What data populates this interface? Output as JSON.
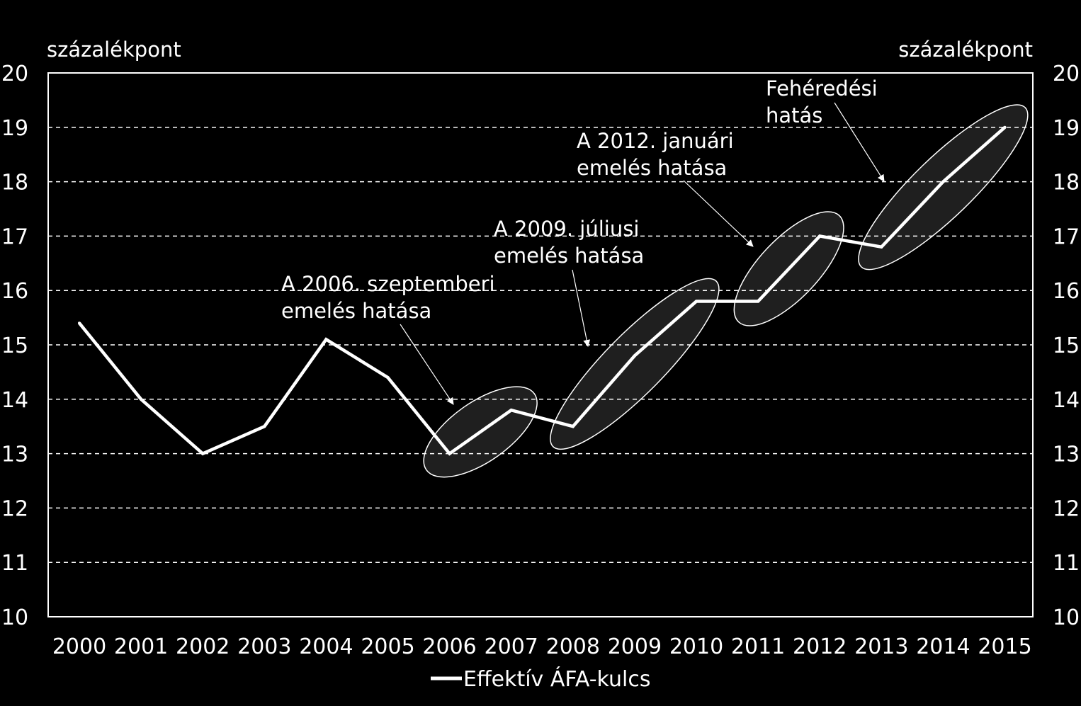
{
  "chart_data": {
    "type": "line",
    "left_unit": "százalékpont",
    "right_unit": "százalékpont",
    "ylim": [
      10,
      20
    ],
    "y_ticks": [
      10,
      11,
      12,
      13,
      14,
      15,
      16,
      17,
      18,
      19,
      20
    ],
    "grid": true,
    "legend_position": "bottom",
    "categories": [
      "2000",
      "2001",
      "2002",
      "2003",
      "2004",
      "2005",
      "2006",
      "2007",
      "2008",
      "2009",
      "2010",
      "2011",
      "2012",
      "2013",
      "2014",
      "2015"
    ],
    "series": [
      {
        "name": "Effektív ÁFA-kulcs",
        "color": "#ffffff",
        "values": [
          15.4,
          14.0,
          13.0,
          13.5,
          15.1,
          14.4,
          13.0,
          13.8,
          13.5,
          14.8,
          15.8,
          15.8,
          17.0,
          16.8,
          18.0,
          19.0
        ]
      }
    ],
    "annotations": [
      {
        "lines": [
          "A 2006. szeptemberi",
          "emelés hatása"
        ],
        "highlight_from": "2006",
        "highlight_to": "2007"
      },
      {
        "lines": [
          "A 2009. júliusi",
          "emelés hatása"
        ],
        "highlight_from": "2008",
        "highlight_to": "2010"
      },
      {
        "lines": [
          "A 2012. januári",
          "emelés hatása"
        ],
        "highlight_from": "2011",
        "highlight_to": "2012"
      },
      {
        "lines": [
          "Fehéredési",
          "hatás"
        ],
        "highlight_from": "2013",
        "highlight_to": "2015"
      }
    ]
  }
}
